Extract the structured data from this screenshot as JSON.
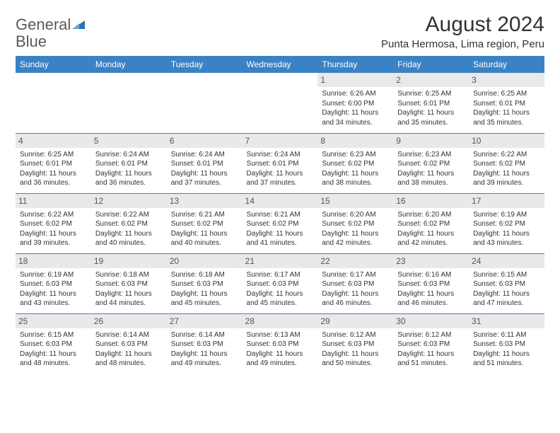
{
  "logo": {
    "text_general": "General",
    "text_blue": "Blue",
    "icon_color": "#2a72b5"
  },
  "header": {
    "month_title": "August 2024",
    "location": "Punta Hermosa, Lima region, Peru"
  },
  "colors": {
    "header_bg": "#3b82c4",
    "header_text": "#ffffff",
    "date_bg": "#e9e9e9",
    "border": "#3b82c4"
  },
  "day_names": [
    "Sunday",
    "Monday",
    "Tuesday",
    "Wednesday",
    "Thursday",
    "Friday",
    "Saturday"
  ],
  "weeks": [
    [
      {
        "date": "",
        "sunrise": "",
        "sunset": "",
        "daylight": ""
      },
      {
        "date": "",
        "sunrise": "",
        "sunset": "",
        "daylight": ""
      },
      {
        "date": "",
        "sunrise": "",
        "sunset": "",
        "daylight": ""
      },
      {
        "date": "",
        "sunrise": "",
        "sunset": "",
        "daylight": ""
      },
      {
        "date": "1",
        "sunrise": "Sunrise: 6:26 AM",
        "sunset": "Sunset: 6:00 PM",
        "daylight": "Daylight: 11 hours and 34 minutes."
      },
      {
        "date": "2",
        "sunrise": "Sunrise: 6:25 AM",
        "sunset": "Sunset: 6:01 PM",
        "daylight": "Daylight: 11 hours and 35 minutes."
      },
      {
        "date": "3",
        "sunrise": "Sunrise: 6:25 AM",
        "sunset": "Sunset: 6:01 PM",
        "daylight": "Daylight: 11 hours and 35 minutes."
      }
    ],
    [
      {
        "date": "4",
        "sunrise": "Sunrise: 6:25 AM",
        "sunset": "Sunset: 6:01 PM",
        "daylight": "Daylight: 11 hours and 36 minutes."
      },
      {
        "date": "5",
        "sunrise": "Sunrise: 6:24 AM",
        "sunset": "Sunset: 6:01 PM",
        "daylight": "Daylight: 11 hours and 36 minutes."
      },
      {
        "date": "6",
        "sunrise": "Sunrise: 6:24 AM",
        "sunset": "Sunset: 6:01 PM",
        "daylight": "Daylight: 11 hours and 37 minutes."
      },
      {
        "date": "7",
        "sunrise": "Sunrise: 6:24 AM",
        "sunset": "Sunset: 6:01 PM",
        "daylight": "Daylight: 11 hours and 37 minutes."
      },
      {
        "date": "8",
        "sunrise": "Sunrise: 6:23 AM",
        "sunset": "Sunset: 6:02 PM",
        "daylight": "Daylight: 11 hours and 38 minutes."
      },
      {
        "date": "9",
        "sunrise": "Sunrise: 6:23 AM",
        "sunset": "Sunset: 6:02 PM",
        "daylight": "Daylight: 11 hours and 38 minutes."
      },
      {
        "date": "10",
        "sunrise": "Sunrise: 6:22 AM",
        "sunset": "Sunset: 6:02 PM",
        "daylight": "Daylight: 11 hours and 39 minutes."
      }
    ],
    [
      {
        "date": "11",
        "sunrise": "Sunrise: 6:22 AM",
        "sunset": "Sunset: 6:02 PM",
        "daylight": "Daylight: 11 hours and 39 minutes."
      },
      {
        "date": "12",
        "sunrise": "Sunrise: 6:22 AM",
        "sunset": "Sunset: 6:02 PM",
        "daylight": "Daylight: 11 hours and 40 minutes."
      },
      {
        "date": "13",
        "sunrise": "Sunrise: 6:21 AM",
        "sunset": "Sunset: 6:02 PM",
        "daylight": "Daylight: 11 hours and 40 minutes."
      },
      {
        "date": "14",
        "sunrise": "Sunrise: 6:21 AM",
        "sunset": "Sunset: 6:02 PM",
        "daylight": "Daylight: 11 hours and 41 minutes."
      },
      {
        "date": "15",
        "sunrise": "Sunrise: 6:20 AM",
        "sunset": "Sunset: 6:02 PM",
        "daylight": "Daylight: 11 hours and 42 minutes."
      },
      {
        "date": "16",
        "sunrise": "Sunrise: 6:20 AM",
        "sunset": "Sunset: 6:02 PM",
        "daylight": "Daylight: 11 hours and 42 minutes."
      },
      {
        "date": "17",
        "sunrise": "Sunrise: 6:19 AM",
        "sunset": "Sunset: 6:02 PM",
        "daylight": "Daylight: 11 hours and 43 minutes."
      }
    ],
    [
      {
        "date": "18",
        "sunrise": "Sunrise: 6:19 AM",
        "sunset": "Sunset: 6:03 PM",
        "daylight": "Daylight: 11 hours and 43 minutes."
      },
      {
        "date": "19",
        "sunrise": "Sunrise: 6:18 AM",
        "sunset": "Sunset: 6:03 PM",
        "daylight": "Daylight: 11 hours and 44 minutes."
      },
      {
        "date": "20",
        "sunrise": "Sunrise: 6:18 AM",
        "sunset": "Sunset: 6:03 PM",
        "daylight": "Daylight: 11 hours and 45 minutes."
      },
      {
        "date": "21",
        "sunrise": "Sunrise: 6:17 AM",
        "sunset": "Sunset: 6:03 PM",
        "daylight": "Daylight: 11 hours and 45 minutes."
      },
      {
        "date": "22",
        "sunrise": "Sunrise: 6:17 AM",
        "sunset": "Sunset: 6:03 PM",
        "daylight": "Daylight: 11 hours and 46 minutes."
      },
      {
        "date": "23",
        "sunrise": "Sunrise: 6:16 AM",
        "sunset": "Sunset: 6:03 PM",
        "daylight": "Daylight: 11 hours and 46 minutes."
      },
      {
        "date": "24",
        "sunrise": "Sunrise: 6:15 AM",
        "sunset": "Sunset: 6:03 PM",
        "daylight": "Daylight: 11 hours and 47 minutes."
      }
    ],
    [
      {
        "date": "25",
        "sunrise": "Sunrise: 6:15 AM",
        "sunset": "Sunset: 6:03 PM",
        "daylight": "Daylight: 11 hours and 48 minutes."
      },
      {
        "date": "26",
        "sunrise": "Sunrise: 6:14 AM",
        "sunset": "Sunset: 6:03 PM",
        "daylight": "Daylight: 11 hours and 48 minutes."
      },
      {
        "date": "27",
        "sunrise": "Sunrise: 6:14 AM",
        "sunset": "Sunset: 6:03 PM",
        "daylight": "Daylight: 11 hours and 49 minutes."
      },
      {
        "date": "28",
        "sunrise": "Sunrise: 6:13 AM",
        "sunset": "Sunset: 6:03 PM",
        "daylight": "Daylight: 11 hours and 49 minutes."
      },
      {
        "date": "29",
        "sunrise": "Sunrise: 6:12 AM",
        "sunset": "Sunset: 6:03 PM",
        "daylight": "Daylight: 11 hours and 50 minutes."
      },
      {
        "date": "30",
        "sunrise": "Sunrise: 6:12 AM",
        "sunset": "Sunset: 6:03 PM",
        "daylight": "Daylight: 11 hours and 51 minutes."
      },
      {
        "date": "31",
        "sunrise": "Sunrise: 6:11 AM",
        "sunset": "Sunset: 6:03 PM",
        "daylight": "Daylight: 11 hours and 51 minutes."
      }
    ]
  ]
}
